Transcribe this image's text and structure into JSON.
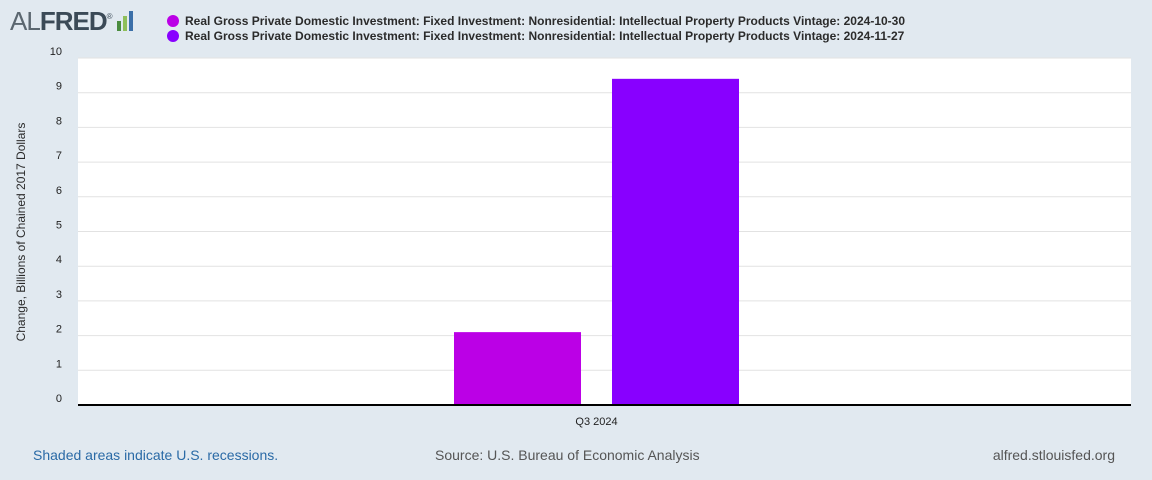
{
  "logo": {
    "part1": "AL",
    "part2": "FRED",
    "reg": "®",
    "bar_colors": [
      "#4a8c3f",
      "#8fbf5a",
      "#3b6fa8"
    ]
  },
  "footer": {
    "recessions_note": "Shaded areas indicate U.S. recessions.",
    "source": "Source: U.S. Bureau of Economic Analysis",
    "site": "alfred.stlouisfed.org"
  },
  "chart_data": {
    "type": "bar",
    "categories": [
      "Q3 2024"
    ],
    "series": [
      {
        "name": "Real Gross Private Domestic Investment: Fixed Investment: Nonresidential: Intellectual Property Products Vintage: 2024-10-30",
        "values": [
          2.1
        ],
        "color": "#bb00e6"
      },
      {
        "name": "Real Gross Private Domestic Investment: Fixed Investment: Nonresidential: Intellectual Property Products Vintage: 2024-11-27",
        "values": [
          9.4
        ],
        "color": "#8800ff"
      }
    ],
    "ylabel": "Change, Billions of Chained 2017 Dollars",
    "ylim": [
      0,
      10
    ],
    "yticks": [
      "0",
      "1",
      "2",
      "3",
      "4",
      "5",
      "6",
      "7",
      "8",
      "9",
      "10"
    ],
    "grid": true,
    "legend_position": "top"
  }
}
